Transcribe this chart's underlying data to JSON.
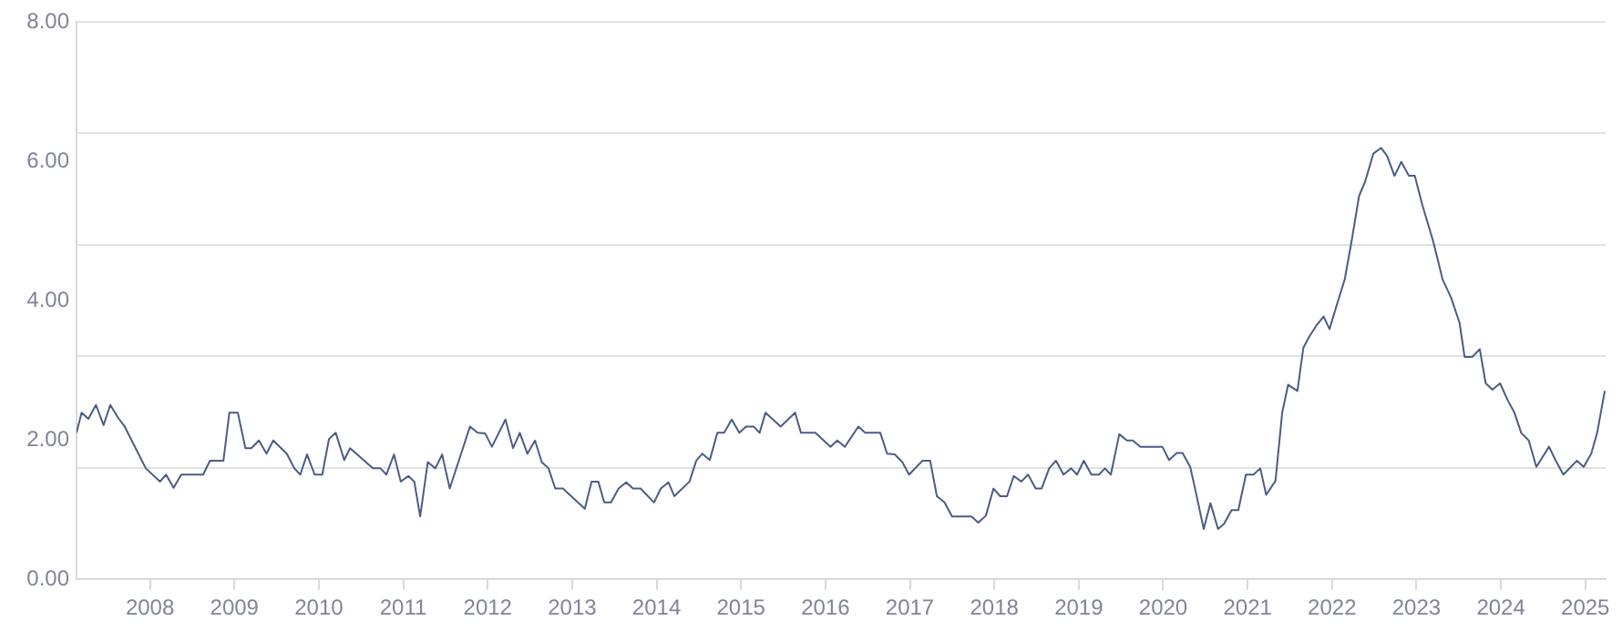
{
  "chart_data": {
    "type": "line",
    "color": "#4b5d84",
    "marker": "none",
    "line_style": "solid",
    "grid": "y",
    "x": [
      2007.13,
      2007.19,
      2007.27,
      2007.36,
      2007.45,
      2007.53,
      2007.62,
      2007.7,
      2007.95,
      2008.12,
      2008.19,
      2008.28,
      2008.37,
      2008.63,
      2008.71,
      2008.87,
      2008.94,
      2009.04,
      2009.13,
      2009.2,
      2009.29,
      2009.38,
      2009.46,
      2009.62,
      2009.71,
      2009.78,
      2009.86,
      2009.95,
      2010.04,
      2010.12,
      2010.2,
      2010.3,
      2010.37,
      2010.64,
      2010.73,
      2010.8,
      2010.89,
      2010.97,
      2011.06,
      2011.13,
      2011.2,
      2011.29,
      2011.38,
      2011.46,
      2011.55,
      2011.79,
      2011.88,
      2011.97,
      2012.05,
      2012.21,
      2012.3,
      2012.38,
      2012.47,
      2012.56,
      2012.64,
      2012.72,
      2012.8,
      2012.89,
      2013.15,
      2013.23,
      2013.31,
      2013.38,
      2013.46,
      2013.55,
      2013.64,
      2013.72,
      2013.81,
      2013.97,
      2014.05,
      2014.14,
      2014.21,
      2014.39,
      2014.47,
      2014.54,
      2014.63,
      2014.72,
      2014.8,
      2014.89,
      2014.98,
      2015.06,
      2015.15,
      2015.22,
      2015.29,
      2015.47,
      2015.64,
      2015.71,
      2015.88,
      2016.06,
      2016.14,
      2016.23,
      2016.39,
      2016.47,
      2016.65,
      2016.73,
      2016.82,
      2016.91,
      2016.99,
      2017.15,
      2017.24,
      2017.32,
      2017.41,
      2017.5,
      2017.73,
      2017.81,
      2017.9,
      2017.99,
      2018.07,
      2018.15,
      2018.23,
      2018.32,
      2018.4,
      2018.49,
      2018.56,
      2018.65,
      2018.73,
      2018.82,
      2018.91,
      2018.98,
      2019.06,
      2019.15,
      2019.24,
      2019.31,
      2019.38,
      2019.48,
      2019.57,
      2019.64,
      2019.73,
      2019.99,
      2020.07,
      2020.16,
      2020.23,
      2020.32,
      2020.39,
      2020.48,
      2020.56,
      2020.65,
      2020.72,
      2020.81,
      2020.89,
      2020.98,
      2021.07,
      2021.15,
      2021.22,
      2021.33,
      2021.41,
      2021.48,
      2021.59,
      2021.66,
      2021.73,
      2021.82,
      2021.9,
      2021.97,
      2022.06,
      2022.15,
      2022.23,
      2022.32,
      2022.39,
      2022.49,
      2022.58,
      2022.65,
      2022.74,
      2022.82,
      2022.91,
      2022.98,
      2023.07,
      2023.2,
      2023.31,
      2023.41,
      2023.51,
      2023.57,
      2023.66,
      2023.75,
      2023.82,
      2023.9,
      2023.99,
      2024.08,
      2024.16,
      2024.24,
      2024.33,
      2024.42,
      2024.57,
      2024.65,
      2024.74,
      2024.9,
      2024.98,
      2025.07,
      2025.14,
      2025.23
    ],
    "values": [
      2.1,
      2.39,
      2.3,
      2.5,
      2.21,
      2.5,
      2.32,
      2.19,
      1.59,
      1.4,
      1.5,
      1.31,
      1.5,
      1.5,
      1.7,
      1.7,
      2.39,
      2.39,
      1.88,
      1.88,
      1.99,
      1.8,
      1.99,
      1.8,
      1.59,
      1.5,
      1.79,
      1.5,
      1.5,
      2.01,
      2.1,
      1.71,
      1.88,
      1.59,
      1.59,
      1.5,
      1.79,
      1.4,
      1.48,
      1.4,
      0.9,
      1.68,
      1.59,
      1.79,
      1.3,
      2.19,
      2.1,
      2.09,
      1.9,
      2.29,
      1.88,
      2.1,
      1.8,
      1.99,
      1.68,
      1.59,
      1.3,
      1.3,
      1.01,
      1.4,
      1.4,
      1.1,
      1.1,
      1.3,
      1.39,
      1.3,
      1.3,
      1.1,
      1.3,
      1.39,
      1.19,
      1.4,
      1.7,
      1.8,
      1.71,
      2.1,
      2.1,
      2.29,
      2.1,
      2.19,
      2.19,
      2.1,
      2.39,
      2.19,
      2.39,
      2.1,
      2.1,
      1.9,
      1.99,
      1.9,
      2.19,
      2.1,
      2.1,
      1.8,
      1.79,
      1.68,
      1.5,
      1.7,
      1.7,
      1.19,
      1.1,
      0.9,
      0.9,
      0.81,
      0.91,
      1.3,
      1.19,
      1.19,
      1.48,
      1.4,
      1.5,
      1.3,
      1.3,
      1.59,
      1.7,
      1.5,
      1.59,
      1.5,
      1.7,
      1.5,
      1.5,
      1.59,
      1.5,
      2.08,
      1.99,
      1.99,
      1.9,
      1.9,
      1.71,
      1.81,
      1.81,
      1.61,
      1.23,
      0.72,
      1.09,
      0.72,
      0.79,
      0.99,
      0.99,
      1.5,
      1.5,
      1.59,
      1.21,
      1.41,
      2.39,
      2.79,
      2.7,
      3.32,
      3.48,
      3.65,
      3.77,
      3.59,
      3.95,
      4.3,
      4.84,
      5.5,
      5.7,
      6.11,
      6.19,
      6.08,
      5.79,
      5.99,
      5.79,
      5.79,
      5.37,
      4.84,
      4.3,
      4.04,
      3.68,
      3.19,
      3.19,
      3.3,
      2.81,
      2.72,
      2.81,
      2.57,
      2.39,
      2.1,
      1.99,
      1.61,
      1.9,
      1.7,
      1.5,
      1.7,
      1.61,
      1.8,
      2.1,
      2.7
    ],
    "xlim": [
      2007.13,
      2025.24
    ],
    "xticks": [
      2008,
      2009,
      2010,
      2011,
      2012,
      2013,
      2014,
      2015,
      2016,
      2017,
      2018,
      2019,
      2020,
      2021,
      2022,
      2023,
      2024,
      2025
    ],
    "ylim": [
      0,
      8
    ],
    "yticks": [
      {
        "value": 0,
        "label": "0.00"
      },
      {
        "value": 1.6,
        "label": null
      },
      {
        "value": 2,
        "label": "2.00"
      },
      {
        "value": 3.2,
        "label": null
      },
      {
        "value": 4,
        "label": "4.00"
      },
      {
        "value": 4.8,
        "label": null
      },
      {
        "value": 6,
        "label": "6.00"
      },
      {
        "value": 6.4,
        "label": null
      },
      {
        "value": 8,
        "label": "8.00"
      }
    ]
  }
}
